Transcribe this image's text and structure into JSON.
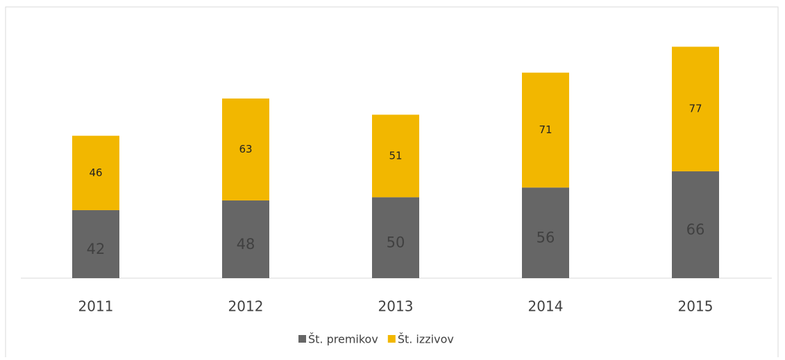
{
  "chart_data": {
    "type": "stacked_bar",
    "categories": [
      "2011",
      "2012",
      "2013",
      "2014",
      "2015"
    ],
    "series": [
      {
        "name": "Št. premikov",
        "color": "#666666",
        "values": [
          42,
          48,
          50,
          56,
          66
        ]
      },
      {
        "name": "Št. izzivov",
        "color": "#f2b700",
        "values": [
          46,
          63,
          51,
          71,
          77
        ]
      }
    ]
  }
}
